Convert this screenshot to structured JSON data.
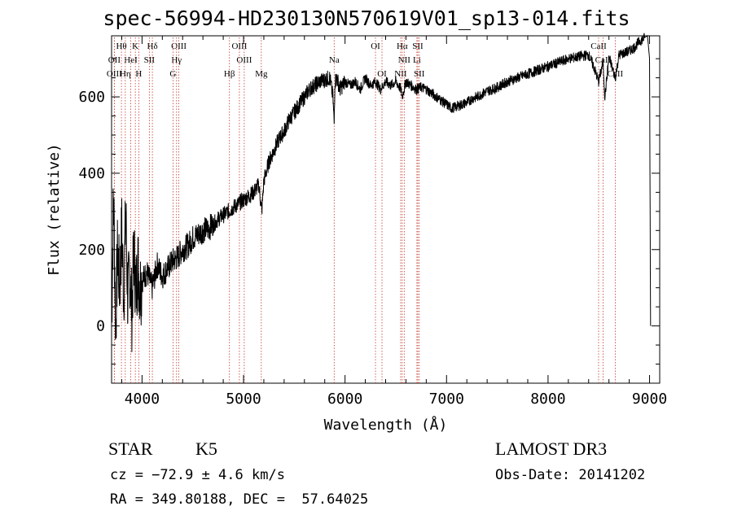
{
  "title": "spec-56994-HD230130N570619V01_sp13-014.fits",
  "info": {
    "class_type": "STAR",
    "subclass": "K5",
    "survey": "LAMOST DR3",
    "cz": "cz = −72.9 ± 4.6 km/s",
    "obs_date": "Obs-Date: 20141202",
    "radec": "RA = 349.80188, DEC =  57.64025"
  },
  "chart_data": {
    "type": "line",
    "title": "spec-56994-HD230130N570619V01_sp13-014.fits",
    "xlabel": "Wavelength (Å)",
    "ylabel": "Flux (relative)",
    "xlim": [
      3700,
      9100
    ],
    "ylim": [
      -150,
      760
    ],
    "x_ticks": [
      4000,
      5000,
      6000,
      7000,
      8000,
      9000
    ],
    "y_ticks": [
      0,
      200,
      400,
      600
    ],
    "series": [
      {
        "name": "flux",
        "x": [
          3700,
          3720,
          3740,
          3760,
          3780,
          3800,
          3820,
          3840,
          3860,
          3880,
          3900,
          3920,
          3940,
          3960,
          3980,
          4000,
          4050,
          4100,
          4150,
          4200,
          4250,
          4300,
          4350,
          4400,
          4450,
          4500,
          4550,
          4600,
          4650,
          4700,
          4750,
          4800,
          4850,
          4900,
          4950,
          5000,
          5050,
          5100,
          5150,
          5180,
          5200,
          5250,
          5300,
          5350,
          5400,
          5450,
          5500,
          5550,
          5600,
          5650,
          5700,
          5750,
          5800,
          5850,
          5880,
          5893,
          5900,
          5920,
          5950,
          6000,
          6050,
          6100,
          6150,
          6200,
          6250,
          6300,
          6350,
          6400,
          6450,
          6500,
          6550,
          6563,
          6600,
          6650,
          6700,
          6750,
          6800,
          6850,
          6900,
          6950,
          7000,
          7050,
          7100,
          7150,
          7200,
          7250,
          7300,
          7400,
          7500,
          7600,
          7700,
          7800,
          7900,
          8000,
          8100,
          8200,
          8300,
          8400,
          8450,
          8498,
          8542,
          8560,
          8600,
          8662,
          8700,
          8750,
          8800,
          8850,
          8900,
          8950,
          8980,
          9000,
          9010
        ],
        "y": [
          20,
          350,
          0,
          200,
          100,
          250,
          80,
          300,
          60,
          150,
          40,
          200,
          90,
          160,
          100,
          120,
          140,
          100,
          160,
          130,
          150,
          170,
          180,
          200,
          210,
          230,
          240,
          250,
          255,
          265,
          280,
          290,
          300,
          310,
          320,
          330,
          340,
          350,
          370,
          300,
          380,
          430,
          460,
          490,
          510,
          540,
          560,
          580,
          600,
          620,
          630,
          640,
          645,
          650,
          600,
          530,
          640,
          650,
          620,
          640,
          630,
          640,
          620,
          650,
          630,
          640,
          620,
          640,
          630,
          640,
          620,
          600,
          640,
          630,
          620,
          625,
          620,
          610,
          600,
          590,
          580,
          570,
          575,
          580,
          585,
          595,
          600,
          615,
          625,
          640,
          650,
          660,
          670,
          680,
          690,
          700,
          705,
          710,
          680,
          640,
          690,
          600,
          705,
          650,
          710,
          715,
          720,
          730,
          745,
          755,
          760,
          700,
          0
        ]
      }
    ],
    "line_markers": [
      {
        "label": "Hθ",
        "wavelength": 3797,
        "row": 0
      },
      {
        "label": "K",
        "wavelength": 3934,
        "row": 0
      },
      {
        "label": "Hδ",
        "wavelength": 4102,
        "row": 0
      },
      {
        "label": "OIII",
        "wavelength": 4363,
        "row": 0
      },
      {
        "label": "OIII",
        "wavelength": 4959,
        "row": 0
      },
      {
        "label": "OI",
        "wavelength": 6300,
        "row": 0
      },
      {
        "label": "Hα",
        "wavelength": 6563,
        "row": 0
      },
      {
        "label": "SII",
        "wavelength": 6717,
        "row": 0
      },
      {
        "label": "CaII",
        "wavelength": 8498,
        "row": 0
      },
      {
        "label": "OII",
        "wavelength": 3727,
        "row": 1
      },
      {
        "label": "HeI",
        "wavelength": 3889,
        "row": 1
      },
      {
        "label": "SII",
        "wavelength": 4072,
        "row": 1
      },
      {
        "label": "Hγ",
        "wavelength": 4340,
        "row": 1
      },
      {
        "label": "OIII",
        "wavelength": 5007,
        "row": 1
      },
      {
        "label": "Na",
        "wavelength": 5893,
        "row": 1
      },
      {
        "label": "NII",
        "wavelength": 6583,
        "row": 1
      },
      {
        "label": "Li",
        "wavelength": 6708,
        "row": 1
      },
      {
        "label": "CaII",
        "wavelength": 8542,
        "row": 1
      },
      {
        "label": "OIII",
        "wavelength": 3727,
        "row": 2
      },
      {
        "label": "Hη",
        "wavelength": 3835,
        "row": 2
      },
      {
        "label": "H",
        "wavelength": 3968,
        "row": 2
      },
      {
        "label": "G",
        "wavelength": 4305,
        "row": 2
      },
      {
        "label": "Hβ",
        "wavelength": 4861,
        "row": 2
      },
      {
        "label": "Mg",
        "wavelength": 5175,
        "row": 2
      },
      {
        "label": "OI",
        "wavelength": 6364,
        "row": 2
      },
      {
        "label": "NII",
        "wavelength": 6548,
        "row": 2
      },
      {
        "label": "SII",
        "wavelength": 6731,
        "row": 2
      },
      {
        "label": "CaII",
        "wavelength": 8662,
        "row": 2
      }
    ]
  },
  "colors": {
    "spectrum": "#000000",
    "line_marker": "#c0392b",
    "background": "#ffffff"
  }
}
